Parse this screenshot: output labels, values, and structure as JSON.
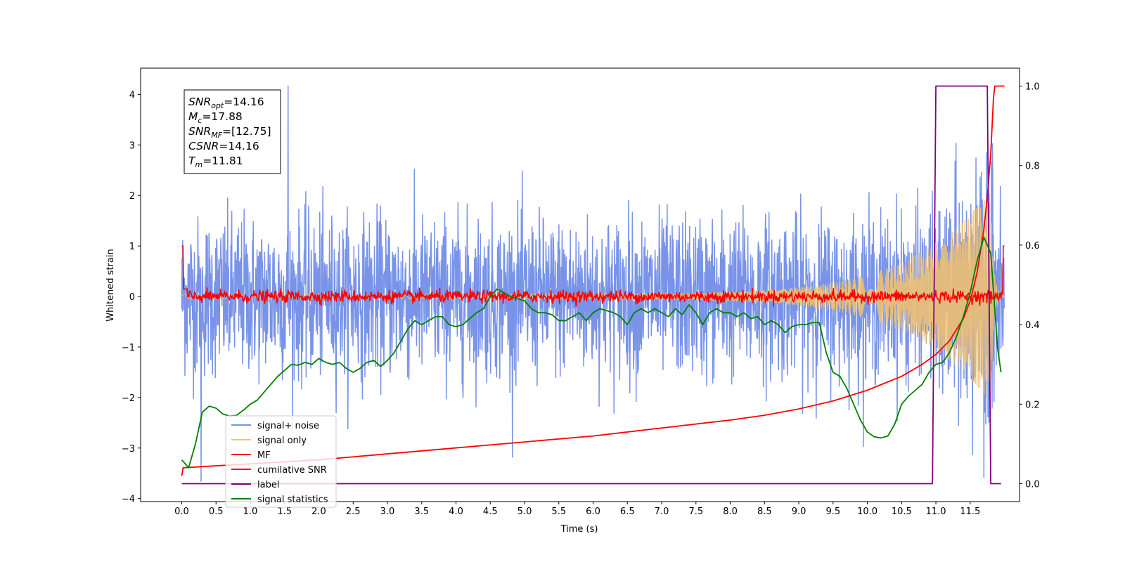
{
  "chart_data": {
    "type": "line",
    "title": "",
    "xlabel": "Time (s)",
    "ylabel": "Whitened strain",
    "xlim": [
      -0.6,
      12.22
    ],
    "ylim": [
      -4.06,
      4.52
    ],
    "y2lim": [
      -0.045,
      1.045
    ],
    "xticks": [
      "0.0",
      "0.5",
      "1.0",
      "1.5",
      "2.0",
      "2.5",
      "3.0",
      "3.5",
      "4.0",
      "4.5",
      "5.0",
      "5.5",
      "6.0",
      "6.5",
      "7.0",
      "7.5",
      "8.0",
      "8.5",
      "9.0",
      "9.5",
      "10.0",
      "10.5",
      "11.0",
      "11.5"
    ],
    "yticks": [
      "−4",
      "−3",
      "−2",
      "−1",
      "0",
      "1",
      "2",
      "3",
      "4"
    ],
    "y2ticks": [
      "0.0",
      "0.2",
      "0.4",
      "0.6",
      "0.8",
      "1.0"
    ],
    "grid": false,
    "legend_position": "lower-left",
    "annotation": [
      {
        "base": "SNR",
        "sub": "opt",
        "value": "=14.16"
      },
      {
        "base": "M",
        "sub": "c",
        "value": "=17.88"
      },
      {
        "base": "SNR",
        "sub": "MF",
        "value": "=[12.75]"
      },
      {
        "base": "CSNR",
        "sub": "",
        "value": "=14.16"
      },
      {
        "base": "T",
        "sub": "m",
        "value": "=11.81"
      }
    ],
    "series": [
      {
        "name": "signal+ noise",
        "axis": "left",
        "color": "#7893e8",
        "style": "noise",
        "noise_std": 0.78,
        "noise_peak": 4.17,
        "noise_trough": -3.68,
        "x_range": [
          0.0,
          12.0
        ]
      },
      {
        "name": "signal only",
        "axis": "left",
        "color": "#f5c26b",
        "style": "chirp",
        "amplitude_start": 0.05,
        "amplitude_peak": 2.1,
        "peak_time": 11.8,
        "x_range": [
          0.0,
          12.0
        ]
      },
      {
        "name": "MF",
        "axis": "left",
        "color": "#ff0000",
        "style": "mf",
        "noise_std": 0.06,
        "endpoint_values": [
          1.0,
          1.0
        ],
        "x_range": [
          0.0,
          12.0
        ]
      },
      {
        "name": "cumilative SNR",
        "axis": "right",
        "color": "#ff0000",
        "x": [
          0.0,
          0.02,
          0.5,
          1.0,
          2.0,
          3.0,
          4.0,
          5.0,
          6.0,
          7.0,
          8.0,
          8.5,
          9.0,
          9.5,
          10.0,
          10.5,
          10.8,
          11.0,
          11.2,
          11.4,
          11.5,
          11.6,
          11.7,
          11.75,
          11.8,
          11.82,
          11.84,
          11.86,
          12.0
        ],
        "y": [
          0.02,
          0.04,
          0.045,
          0.05,
          0.06,
          0.075,
          0.09,
          0.105,
          0.12,
          0.14,
          0.16,
          0.172,
          0.188,
          0.208,
          0.235,
          0.27,
          0.3,
          0.325,
          0.36,
          0.415,
          0.46,
          0.53,
          0.64,
          0.72,
          0.83,
          0.9,
          0.97,
          1.0,
          1.0
        ]
      },
      {
        "name": "label",
        "axis": "right",
        "color": "#800080",
        "x": [
          0.0,
          10.95,
          11.0,
          11.75,
          11.8,
          11.95
        ],
        "y": [
          0.0,
          0.0,
          1.0,
          1.0,
          0.0,
          0.0
        ]
      },
      {
        "name": "signal statistics",
        "axis": "right",
        "color": "#008000",
        "x": [
          0.0,
          0.1,
          0.2,
          0.3,
          0.4,
          0.5,
          0.6,
          0.7,
          0.8,
          0.9,
          1.0,
          1.1,
          1.2,
          1.3,
          1.4,
          1.5,
          1.6,
          1.7,
          1.8,
          1.9,
          2.0,
          2.1,
          2.2,
          2.3,
          2.4,
          2.5,
          2.6,
          2.7,
          2.8,
          2.9,
          3.0,
          3.1,
          3.2,
          3.3,
          3.4,
          3.5,
          3.6,
          3.7,
          3.8,
          3.9,
          4.0,
          4.1,
          4.2,
          4.3,
          4.4,
          4.5,
          4.6,
          4.7,
          4.8,
          4.9,
          5.0,
          5.1,
          5.2,
          5.3,
          5.4,
          5.5,
          5.6,
          5.7,
          5.8,
          5.9,
          6.0,
          6.1,
          6.2,
          6.3,
          6.4,
          6.5,
          6.6,
          6.7,
          6.8,
          6.9,
          7.0,
          7.1,
          7.2,
          7.3,
          7.4,
          7.5,
          7.6,
          7.7,
          7.8,
          7.9,
          8.0,
          8.1,
          8.2,
          8.3,
          8.4,
          8.5,
          8.6,
          8.7,
          8.8,
          8.9,
          9.0,
          9.1,
          9.2,
          9.3,
          9.4,
          9.5,
          9.6,
          9.7,
          9.8,
          9.9,
          10.0,
          10.1,
          10.2,
          10.3,
          10.4,
          10.5,
          10.6,
          10.7,
          10.8,
          10.9,
          11.0,
          11.1,
          11.2,
          11.3,
          11.4,
          11.5,
          11.6,
          11.7,
          11.8,
          11.9,
          11.95
        ],
        "y": [
          0.06,
          0.04,
          0.1,
          0.18,
          0.195,
          0.19,
          0.175,
          0.17,
          0.172,
          0.185,
          0.2,
          0.21,
          0.23,
          0.25,
          0.27,
          0.285,
          0.3,
          0.298,
          0.305,
          0.3,
          0.315,
          0.305,
          0.3,
          0.305,
          0.29,
          0.28,
          0.29,
          0.305,
          0.31,
          0.295,
          0.31,
          0.33,
          0.36,
          0.39,
          0.41,
          0.4,
          0.41,
          0.42,
          0.42,
          0.4,
          0.395,
          0.4,
          0.415,
          0.43,
          0.44,
          0.47,
          0.49,
          0.48,
          0.47,
          0.465,
          0.46,
          0.44,
          0.43,
          0.43,
          0.425,
          0.41,
          0.41,
          0.42,
          0.43,
          0.41,
          0.43,
          0.44,
          0.435,
          0.43,
          0.42,
          0.4,
          0.43,
          0.44,
          0.43,
          0.44,
          0.43,
          0.42,
          0.44,
          0.425,
          0.45,
          0.43,
          0.4,
          0.43,
          0.44,
          0.43,
          0.43,
          0.42,
          0.43,
          0.415,
          0.42,
          0.4,
          0.41,
          0.4,
          0.38,
          0.395,
          0.4,
          0.4,
          0.405,
          0.405,
          0.33,
          0.28,
          0.27,
          0.24,
          0.2,
          0.16,
          0.13,
          0.118,
          0.115,
          0.12,
          0.15,
          0.2,
          0.22,
          0.235,
          0.25,
          0.28,
          0.3,
          0.305,
          0.33,
          0.37,
          0.42,
          0.48,
          0.56,
          0.62,
          0.58,
          0.34,
          0.28
        ]
      }
    ]
  }
}
